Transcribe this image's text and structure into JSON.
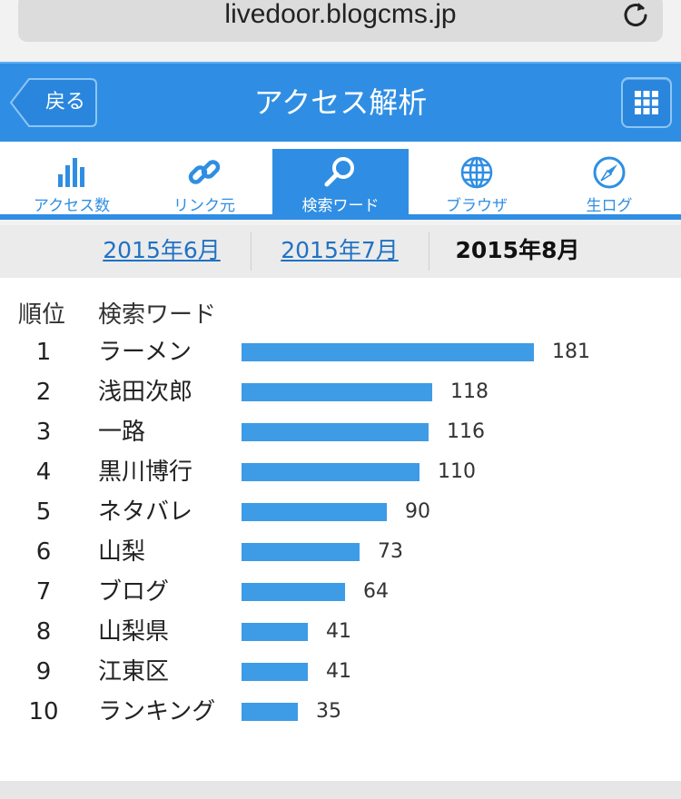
{
  "browser": {
    "url": "livedoor.blogcms.jp"
  },
  "header": {
    "back_label": "戻る",
    "title": "アクセス解析"
  },
  "tabs": [
    {
      "label": "アクセス数",
      "icon": "bar-chart-icon",
      "active": false
    },
    {
      "label": "リンク元",
      "icon": "link-icon",
      "active": false
    },
    {
      "label": "検索ワード",
      "icon": "search-icon",
      "active": true
    },
    {
      "label": "ブラウザ",
      "icon": "globe-icon",
      "active": false
    },
    {
      "label": "生ログ",
      "icon": "compass-icon",
      "active": false
    }
  ],
  "months": [
    {
      "label": "2015年6月",
      "current": false
    },
    {
      "label": "2015年7月",
      "current": false
    },
    {
      "label": "2015年8月",
      "current": true
    }
  ],
  "table": {
    "col_rank": "順位",
    "col_word": "検索ワード",
    "rows": [
      {
        "rank": "1",
        "word": "ラーメン",
        "count": 181
      },
      {
        "rank": "2",
        "word": "浅田次郎",
        "count": 118
      },
      {
        "rank": "3",
        "word": "一路",
        "count": 116
      },
      {
        "rank": "4",
        "word": "黒川博行",
        "count": 110
      },
      {
        "rank": "5",
        "word": "ネタバレ",
        "count": 90
      },
      {
        "rank": "6",
        "word": "山梨",
        "count": 73
      },
      {
        "rank": "7",
        "word": "ブログ",
        "count": 64
      },
      {
        "rank": "8",
        "word": "山梨県",
        "count": 41
      },
      {
        "rank": "9",
        "word": "江東区",
        "count": 41
      },
      {
        "rank": "10",
        "word": "ランキング",
        "count": 35
      }
    ]
  },
  "colors": {
    "accent": "#2f8ee3",
    "bar": "#3e9be6",
    "link": "#1f72c4"
  }
}
